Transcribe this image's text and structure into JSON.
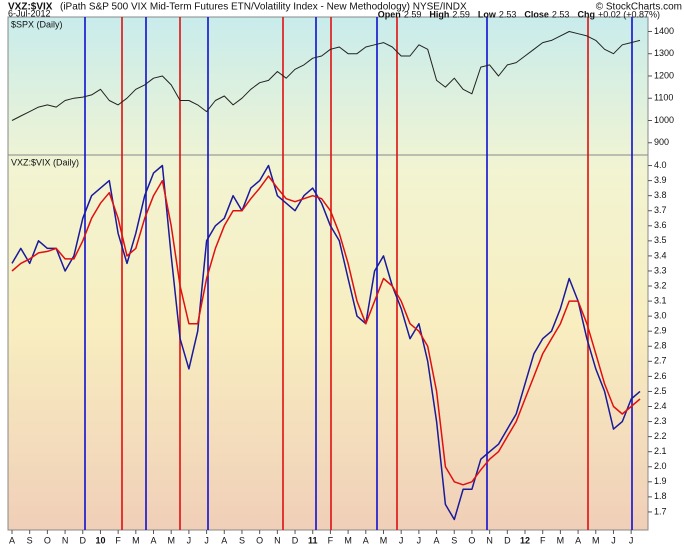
{
  "chart_data": {
    "type": "line",
    "title": "VXZ:$VIX",
    "subtitle": "(iPath S&P 500 VIX Mid-Term Futures ETN/Volatility Index - New Methodology) NYSE/INDX",
    "date": "6-Jul-2012",
    "credit": "© StockCharts.com",
    "quote": [
      {
        "label": "Open",
        "value": "2.59"
      },
      {
        "label": "High",
        "value": "2.59"
      },
      {
        "label": "Low",
        "value": "2.53"
      },
      {
        "label": "Close",
        "value": "2.53"
      },
      {
        "label": "Chg",
        "value": "+0.02 (+0.87%)"
      }
    ],
    "categories": [
      "A",
      null,
      "S",
      null,
      "O",
      null,
      "N",
      null,
      "D",
      null,
      "10",
      null,
      "F",
      null,
      "M",
      null,
      "A",
      null,
      "M",
      null,
      "J",
      null,
      "J",
      null,
      "A",
      null,
      "S",
      null,
      "O",
      null,
      "N",
      null,
      "D",
      null,
      "11",
      null,
      "F",
      null,
      "M",
      null,
      "A",
      null,
      "M",
      null,
      "J",
      null,
      "J",
      null,
      "A",
      null,
      "S",
      null,
      "O",
      null,
      "N",
      null,
      "D",
      null,
      "12",
      null,
      "F",
      null,
      "M",
      null,
      "A",
      null,
      "M",
      null,
      "J",
      null,
      "J",
      null
    ],
    "panels": [
      {
        "label": "$SPX (Daily)",
        "ylim": [
          845,
          1465
        ],
        "yticks": [
          900,
          1000,
          1100,
          1200,
          1300,
          1400
        ],
        "series": [
          {
            "color": "#222222",
            "values": [
              1000,
              1020,
              1040,
              1060,
              1070,
              1060,
              1090,
              1100,
              1105,
              1115,
              1140,
              1090,
              1070,
              1100,
              1140,
              1160,
              1190,
              1200,
              1160,
              1090,
              1090,
              1070,
              1040,
              1090,
              1110,
              1070,
              1100,
              1140,
              1170,
              1180,
              1220,
              1190,
              1230,
              1250,
              1280,
              1290,
              1320,
              1330,
              1300,
              1300,
              1330,
              1340,
              1350,
              1330,
              1290,
              1290,
              1340,
              1320,
              1180,
              1150,
              1190,
              1140,
              1120,
              1240,
              1250,
              1200,
              1250,
              1260,
              1290,
              1320,
              1350,
              1360,
              1380,
              1400,
              1390,
              1380,
              1360,
              1320,
              1300,
              1340,
              1350,
              1360
            ]
          }
        ]
      },
      {
        "label": "VXZ:$VIX (Daily)",
        "ylim": [
          1.58,
          4.07
        ],
        "yticks": [
          1.7,
          1.8,
          1.9,
          {
            "value": 2,
            "label": "2.0"
          },
          2.1,
          2.2,
          2.3,
          2.4,
          2.5,
          2.6,
          2.7,
          2.8,
          2.9,
          {
            "value": 3,
            "label": "3.0"
          },
          3.1,
          3.2,
          3.3,
          3.4,
          3.5,
          3.6,
          3.7,
          3.8,
          3.9,
          {
            "value": 4,
            "label": "4.0"
          }
        ],
        "series": [
          {
            "color": "#1a1a9c",
            "values": [
              3.35,
              3.45,
              3.35,
              3.5,
              3.45,
              3.45,
              3.3,
              3.4,
              3.65,
              3.8,
              3.85,
              3.9,
              3.55,
              3.35,
              3.55,
              3.8,
              3.95,
              4.0,
              3.4,
              2.85,
              2.65,
              2.9,
              3.5,
              3.6,
              3.65,
              3.8,
              3.7,
              3.85,
              3.9,
              4.0,
              3.8,
              3.75,
              3.7,
              3.8,
              3.85,
              3.75,
              3.6,
              3.5,
              3.25,
              3.0,
              2.95,
              3.3,
              3.4,
              3.2,
              3.05,
              2.85,
              2.95,
              2.7,
              2.3,
              1.75,
              1.65,
              1.85,
              1.85,
              2.05,
              2.1,
              2.15,
              2.25,
              2.35,
              2.55,
              2.75,
              2.85,
              2.9,
              3.05,
              3.25,
              3.1,
              2.85,
              2.65,
              2.5,
              2.25,
              2.3,
              2.45,
              2.5
            ]
          },
          {
            "color": "#e01010",
            "values": [
              3.3,
              3.35,
              3.38,
              3.42,
              3.43,
              3.45,
              3.38,
              3.38,
              3.5,
              3.65,
              3.75,
              3.82,
              3.65,
              3.4,
              3.45,
              3.65,
              3.8,
              3.9,
              3.6,
              3.2,
              2.95,
              2.95,
              3.25,
              3.45,
              3.6,
              3.7,
              3.7,
              3.78,
              3.85,
              3.93,
              3.85,
              3.78,
              3.76,
              3.78,
              3.8,
              3.78,
              3.7,
              3.55,
              3.35,
              3.1,
              2.95,
              3.1,
              3.25,
              3.2,
              3.1,
              2.95,
              2.9,
              2.8,
              2.5,
              2.0,
              1.9,
              1.88,
              1.9,
              1.98,
              2.05,
              2.1,
              2.2,
              2.3,
              2.45,
              2.6,
              2.75,
              2.85,
              2.95,
              3.1,
              3.1,
              2.95,
              2.75,
              2.55,
              2.4,
              2.35,
              2.4,
              2.45
            ]
          }
        ]
      }
    ]
  }
}
